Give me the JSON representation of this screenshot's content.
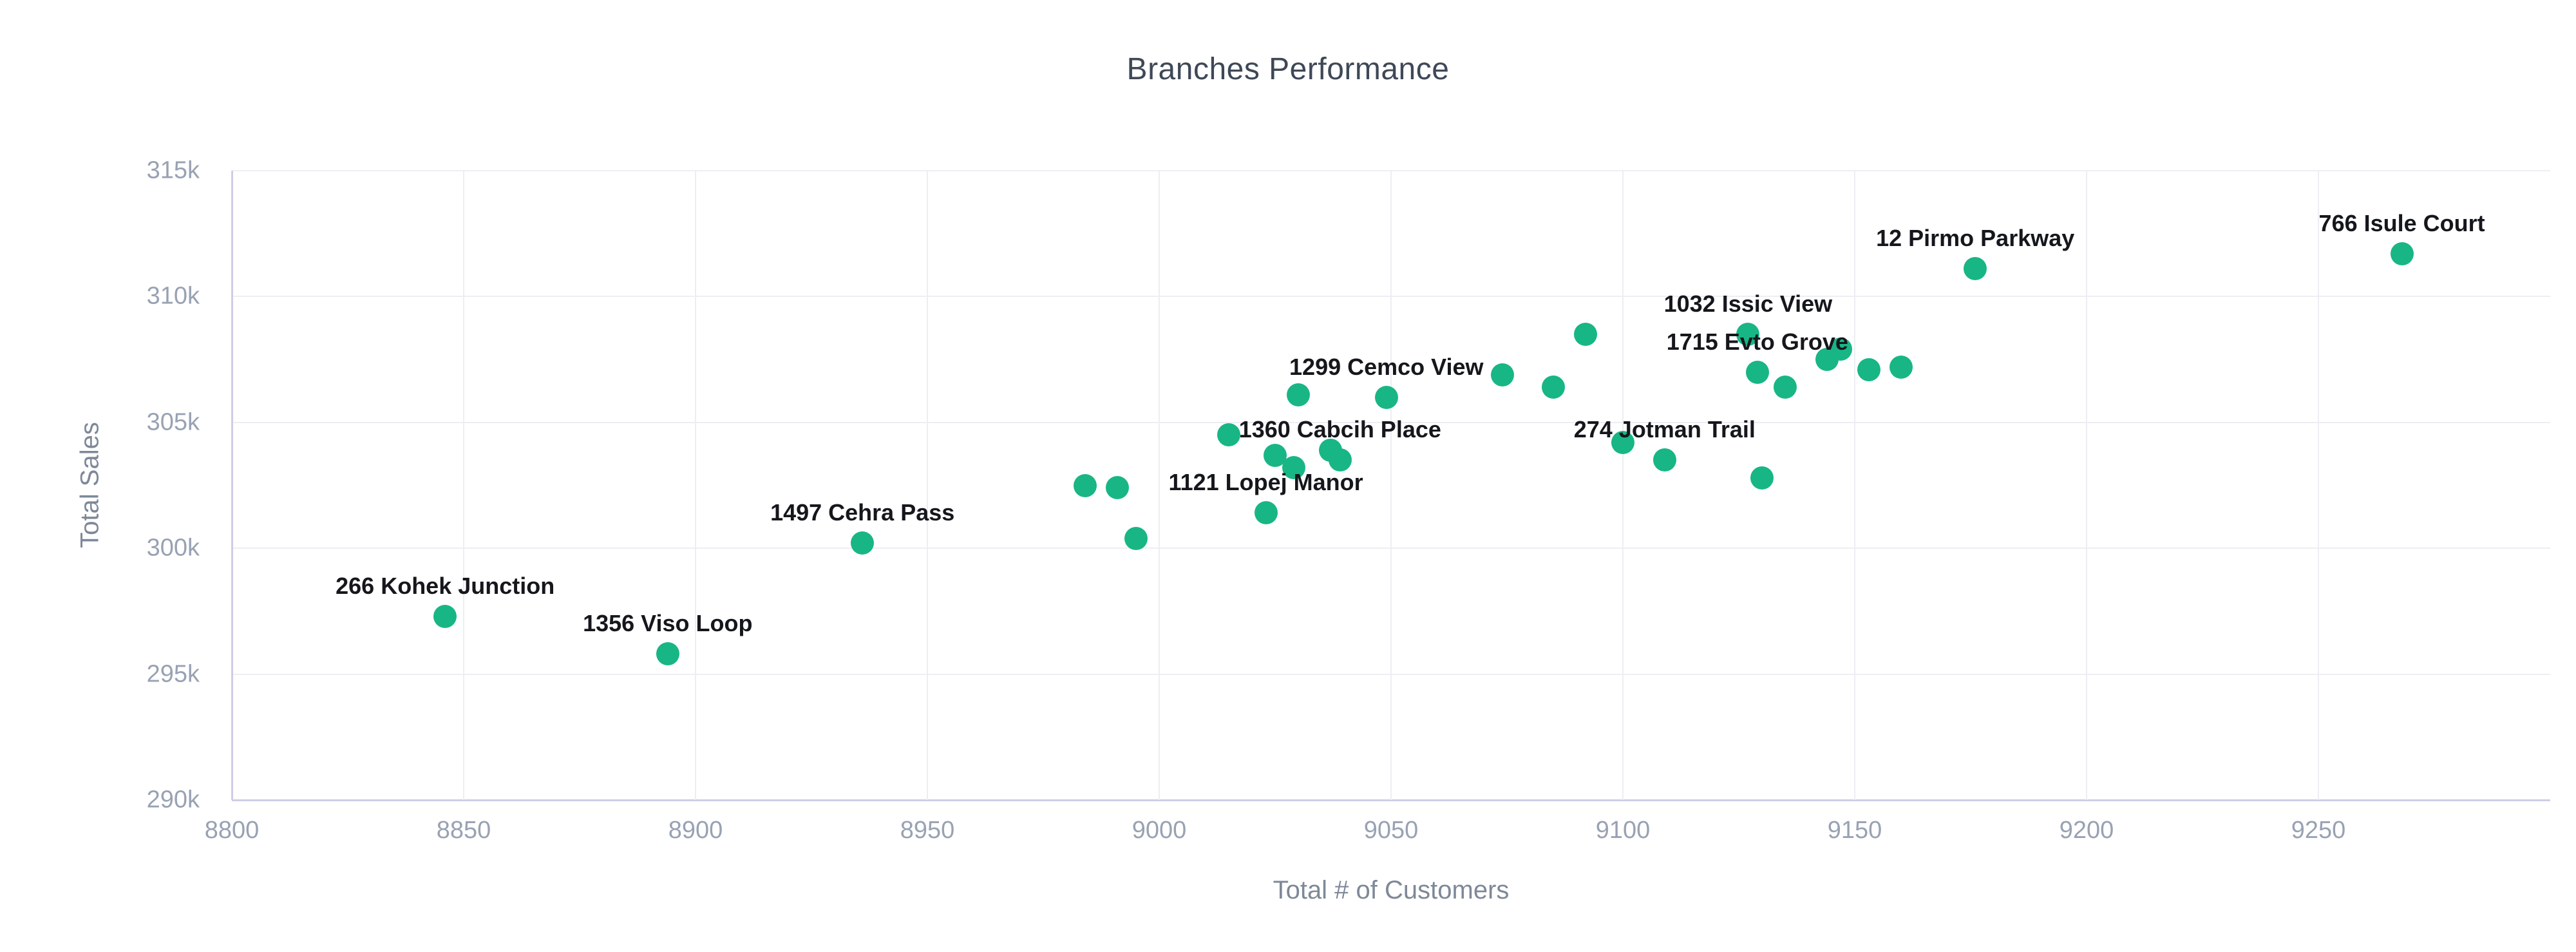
{
  "chart_data": {
    "type": "scatter",
    "title": "Branches Performance",
    "xlabel": "Total # of Customers",
    "ylabel": "Total Sales",
    "xlim": [
      8800,
      9300
    ],
    "ylim": [
      290000,
      315000
    ],
    "grid": true,
    "legend": false,
    "x_ticks": [
      {
        "value": 8800,
        "label": "8800"
      },
      {
        "value": 8850,
        "label": "8850"
      },
      {
        "value": 8900,
        "label": "8900"
      },
      {
        "value": 8950,
        "label": "8950"
      },
      {
        "value": 9000,
        "label": "9000"
      },
      {
        "value": 9050,
        "label": "9050"
      },
      {
        "value": 9100,
        "label": "9100"
      },
      {
        "value": 9150,
        "label": "9150"
      },
      {
        "value": 9200,
        "label": "9200"
      },
      {
        "value": 9250,
        "label": "9250"
      }
    ],
    "y_ticks": [
      {
        "value": 315000,
        "label": "315k"
      },
      {
        "value": 310000,
        "label": "310k"
      },
      {
        "value": 305000,
        "label": "305k"
      },
      {
        "value": 300000,
        "label": "300k"
      },
      {
        "value": 295000,
        "label": "295k"
      },
      {
        "value": 290000,
        "label": "290k"
      }
    ],
    "points": [
      {
        "name": "266 Kohek Junction",
        "x": 8846,
        "y": 297300
      },
      {
        "name": "1356 Viso Loop",
        "x": 8894,
        "y": 295800
      },
      {
        "name": "1497 Cehra Pass",
        "x": 8936,
        "y": 300200
      },
      {
        "name": "",
        "x": 8984,
        "y": 302500
      },
      {
        "name": "",
        "x": 8991,
        "y": 302400
      },
      {
        "name": "",
        "x": 8995,
        "y": 300400
      },
      {
        "name": "",
        "x": 9015,
        "y": 304500
      },
      {
        "name": "1121 Lopej Manor",
        "x": 9023,
        "y": 301400
      },
      {
        "name": "",
        "x": 9025,
        "y": 303700
      },
      {
        "name": "",
        "x": 9029,
        "y": 303200
      },
      {
        "name": "",
        "x": 9030,
        "y": 306100
      },
      {
        "name": "",
        "x": 9037,
        "y": 303900
      },
      {
        "name": "1360 Cabcih Place",
        "x": 9039,
        "y": 303500
      },
      {
        "name": "1299 Cemco View",
        "x": 9049,
        "y": 306000
      },
      {
        "name": "",
        "x": 9074,
        "y": 306900
      },
      {
        "name": "",
        "x": 9085,
        "y": 306400
      },
      {
        "name": "",
        "x": 9092,
        "y": 308500
      },
      {
        "name": "",
        "x": 9100,
        "y": 304200
      },
      {
        "name": "274 Jotman Trail",
        "x": 9109,
        "y": 303500
      },
      {
        "name": "1032 Issic View",
        "x": 9127,
        "y": 308500
      },
      {
        "name": "1715 Evto Grove",
        "x": 9129,
        "y": 307000
      },
      {
        "name": "",
        "x": 9130,
        "y": 302800
      },
      {
        "name": "",
        "x": 9135,
        "y": 306400
      },
      {
        "name": "",
        "x": 9144,
        "y": 307500
      },
      {
        "name": "",
        "x": 9147,
        "y": 307900
      },
      {
        "name": "",
        "x": 9153,
        "y": 307100
      },
      {
        "name": "",
        "x": 9160,
        "y": 307200
      },
      {
        "name": "12 Pirmo Parkway",
        "x": 9176,
        "y": 311100
      },
      {
        "name": "766 Isule Court",
        "x": 9268,
        "y": 311700
      }
    ],
    "colors": {
      "accent": "#18b685",
      "grid": "#edeef3",
      "axis_line": "#cdcee5",
      "tick_text": "#99a2b3",
      "axis_title_text": "#7e8898",
      "title_text": "#3e4857",
      "point_label_text": "#15171c",
      "background": "#ffffff"
    }
  }
}
